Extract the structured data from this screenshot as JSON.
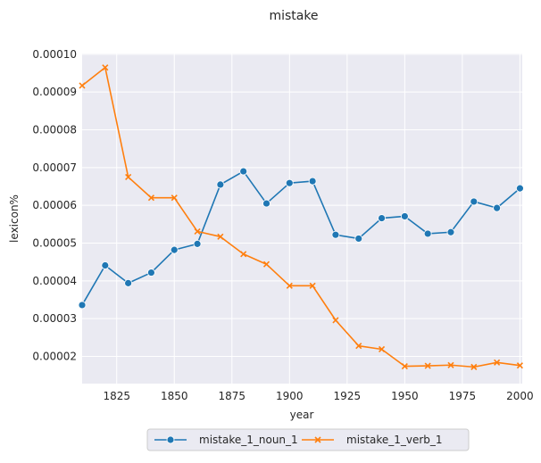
{
  "chart_data": {
    "type": "line",
    "title": "mistake",
    "xlabel": "year",
    "ylabel": "lexicon%",
    "xlim": [
      1810,
      2001
    ],
    "ylim": [
      1.28e-05,
      0.0001002
    ],
    "xticks": [
      1825,
      1850,
      1875,
      1900,
      1925,
      1950,
      1975,
      2000
    ],
    "yticks": [
      2e-05,
      3e-05,
      4e-05,
      5e-05,
      6e-05,
      7e-05,
      8e-05,
      9e-05,
      0.0001
    ],
    "ytick_labels": [
      "0.00002",
      "0.00003",
      "0.00004",
      "0.00005",
      "0.00006",
      "0.00007",
      "0.00008",
      "0.00009",
      "0.00010"
    ],
    "grid": true,
    "background": "#eaeaf2",
    "legend_position": "bottom-center",
    "x": [
      1810,
      1820,
      1830,
      1840,
      1850,
      1860,
      1870,
      1880,
      1890,
      1900,
      1910,
      1920,
      1930,
      1940,
      1950,
      1960,
      1970,
      1980,
      1990,
      2000
    ],
    "series": [
      {
        "name": "mistake_1_noun_1",
        "color": "#1f77b4",
        "marker": "circle",
        "values": [
          3.36e-05,
          4.41e-05,
          3.94e-05,
          4.22e-05,
          4.82e-05,
          4.98e-05,
          6.55e-05,
          6.9e-05,
          6.05e-05,
          6.59e-05,
          6.64e-05,
          5.22e-05,
          5.12e-05,
          5.66e-05,
          5.71e-05,
          5.25e-05,
          5.29e-05,
          6.1e-05,
          5.93e-05,
          6.45e-05
        ]
      },
      {
        "name": "mistake_1_verb_1",
        "color": "#ff7f0e",
        "marker": "x",
        "values": [
          9.17e-05,
          9.65e-05,
          6.75e-05,
          6.2e-05,
          6.2e-05,
          5.31e-05,
          5.17e-05,
          4.71e-05,
          4.44e-05,
          3.87e-05,
          3.87e-05,
          2.96e-05,
          2.28e-05,
          2.19e-05,
          1.74e-05,
          1.75e-05,
          1.77e-05,
          1.72e-05,
          1.84e-05,
          1.76e-05
        ]
      }
    ]
  }
}
